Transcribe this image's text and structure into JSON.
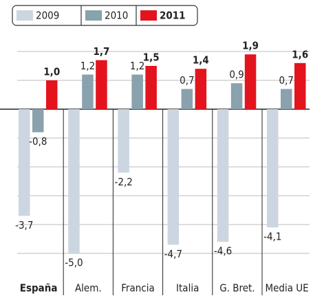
{
  "chart_data": {
    "type": "bar",
    "categories": [
      "España",
      "Alem.",
      "Francia",
      "Italia",
      "G. Bret.",
      "Media UE"
    ],
    "series": [
      {
        "name": "2009",
        "color": "#ccd6e1",
        "values": [
          -3.7,
          -5.0,
          -2.2,
          -4.7,
          -4.6,
          -4.1
        ],
        "value_labels": [
          "-3,7",
          "-5,0",
          "-2,2",
          "-4,7",
          "-4,6",
          "-4,1"
        ]
      },
      {
        "name": "2010",
        "color": "#8aa1ae",
        "values": [
          -0.8,
          1.2,
          1.2,
          0.7,
          0.9,
          0.7
        ],
        "value_labels": [
          "-0,8",
          "1,2",
          "1,2",
          "0,7",
          "0,9",
          "0,7"
        ]
      },
      {
        "name": "2011",
        "color": "#e3141d",
        "values": [
          1.0,
          1.7,
          1.5,
          1.4,
          1.9,
          1.6
        ],
        "value_labels": [
          "1,0",
          "1,7",
          "1,5",
          "1,4",
          "1,9",
          "1,6"
        ]
      }
    ],
    "ylim": [
      -5.7,
      2.35
    ],
    "yticks": [
      -5,
      -4,
      -3,
      -2,
      -1,
      0,
      1,
      2
    ],
    "grid": true
  }
}
